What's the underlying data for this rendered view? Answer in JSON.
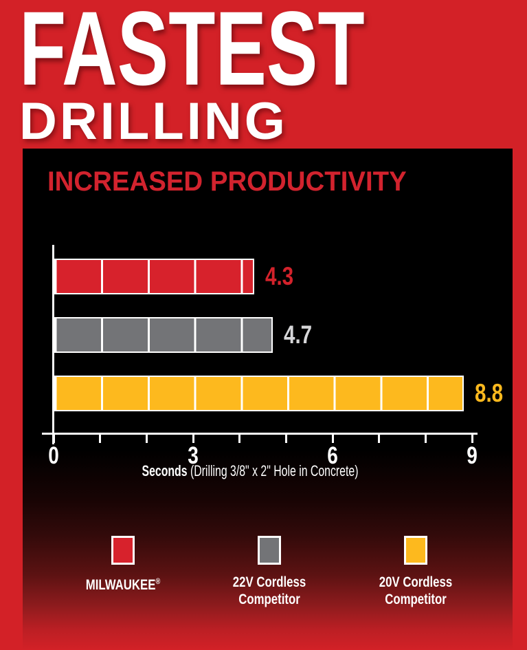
{
  "header": {
    "title_line1": "FASTEST",
    "title_line2": "DRILLING"
  },
  "panel_heading": "INCREASED PRODUCTIVITY",
  "axis_caption": {
    "bold": "Seconds",
    "rest": " (Drilling 3/8\" x 2\" Hole in Concrete)"
  },
  "colors": {
    "background_red": "#d32127",
    "panel_black": "#000000",
    "heading_red": "#d2232e",
    "milwaukee_red": "#d7222c",
    "competitor_gray": "#737477",
    "competitor_yellow": "#fdb91e",
    "white": "#ffffff",
    "gray_value_label": "#d6d6d8"
  },
  "chart_data": {
    "type": "bar",
    "orientation": "horizontal",
    "title": "INCREASED PRODUCTIVITY",
    "categories": [
      "MILWAUKEE®",
      "22V Cordless Competitor",
      "20V Cordless Competitor"
    ],
    "values": [
      4.3,
      4.7,
      8.8
    ],
    "value_labels": [
      "4.3",
      "4.7",
      "8.8"
    ],
    "bar_colors": [
      "#d7222c",
      "#737477",
      "#fdb91e"
    ],
    "value_label_colors": [
      "#d3222b",
      "#d6d6d8",
      "#fdb91e"
    ],
    "xlabel": "Seconds (Drilling 3/8\" x 2\" Hole in Concrete)",
    "xlim": [
      0,
      9
    ],
    "x_ticks": [
      0,
      1,
      2,
      3,
      4,
      5,
      6,
      7,
      8,
      9
    ],
    "x_tick_labels": [
      0,
      3,
      6,
      9
    ],
    "bar_segment_interval": 1,
    "grid": false,
    "legend_position": "bottom",
    "legend": [
      {
        "lines": [
          "MILWAUKEE®"
        ],
        "color": "#d7222c"
      },
      {
        "lines": [
          "22V Cordless",
          "Competitor"
        ],
        "color": "#737477"
      },
      {
        "lines": [
          "20V Cordless",
          "Competitor"
        ],
        "color": "#fdb91e"
      }
    ]
  }
}
